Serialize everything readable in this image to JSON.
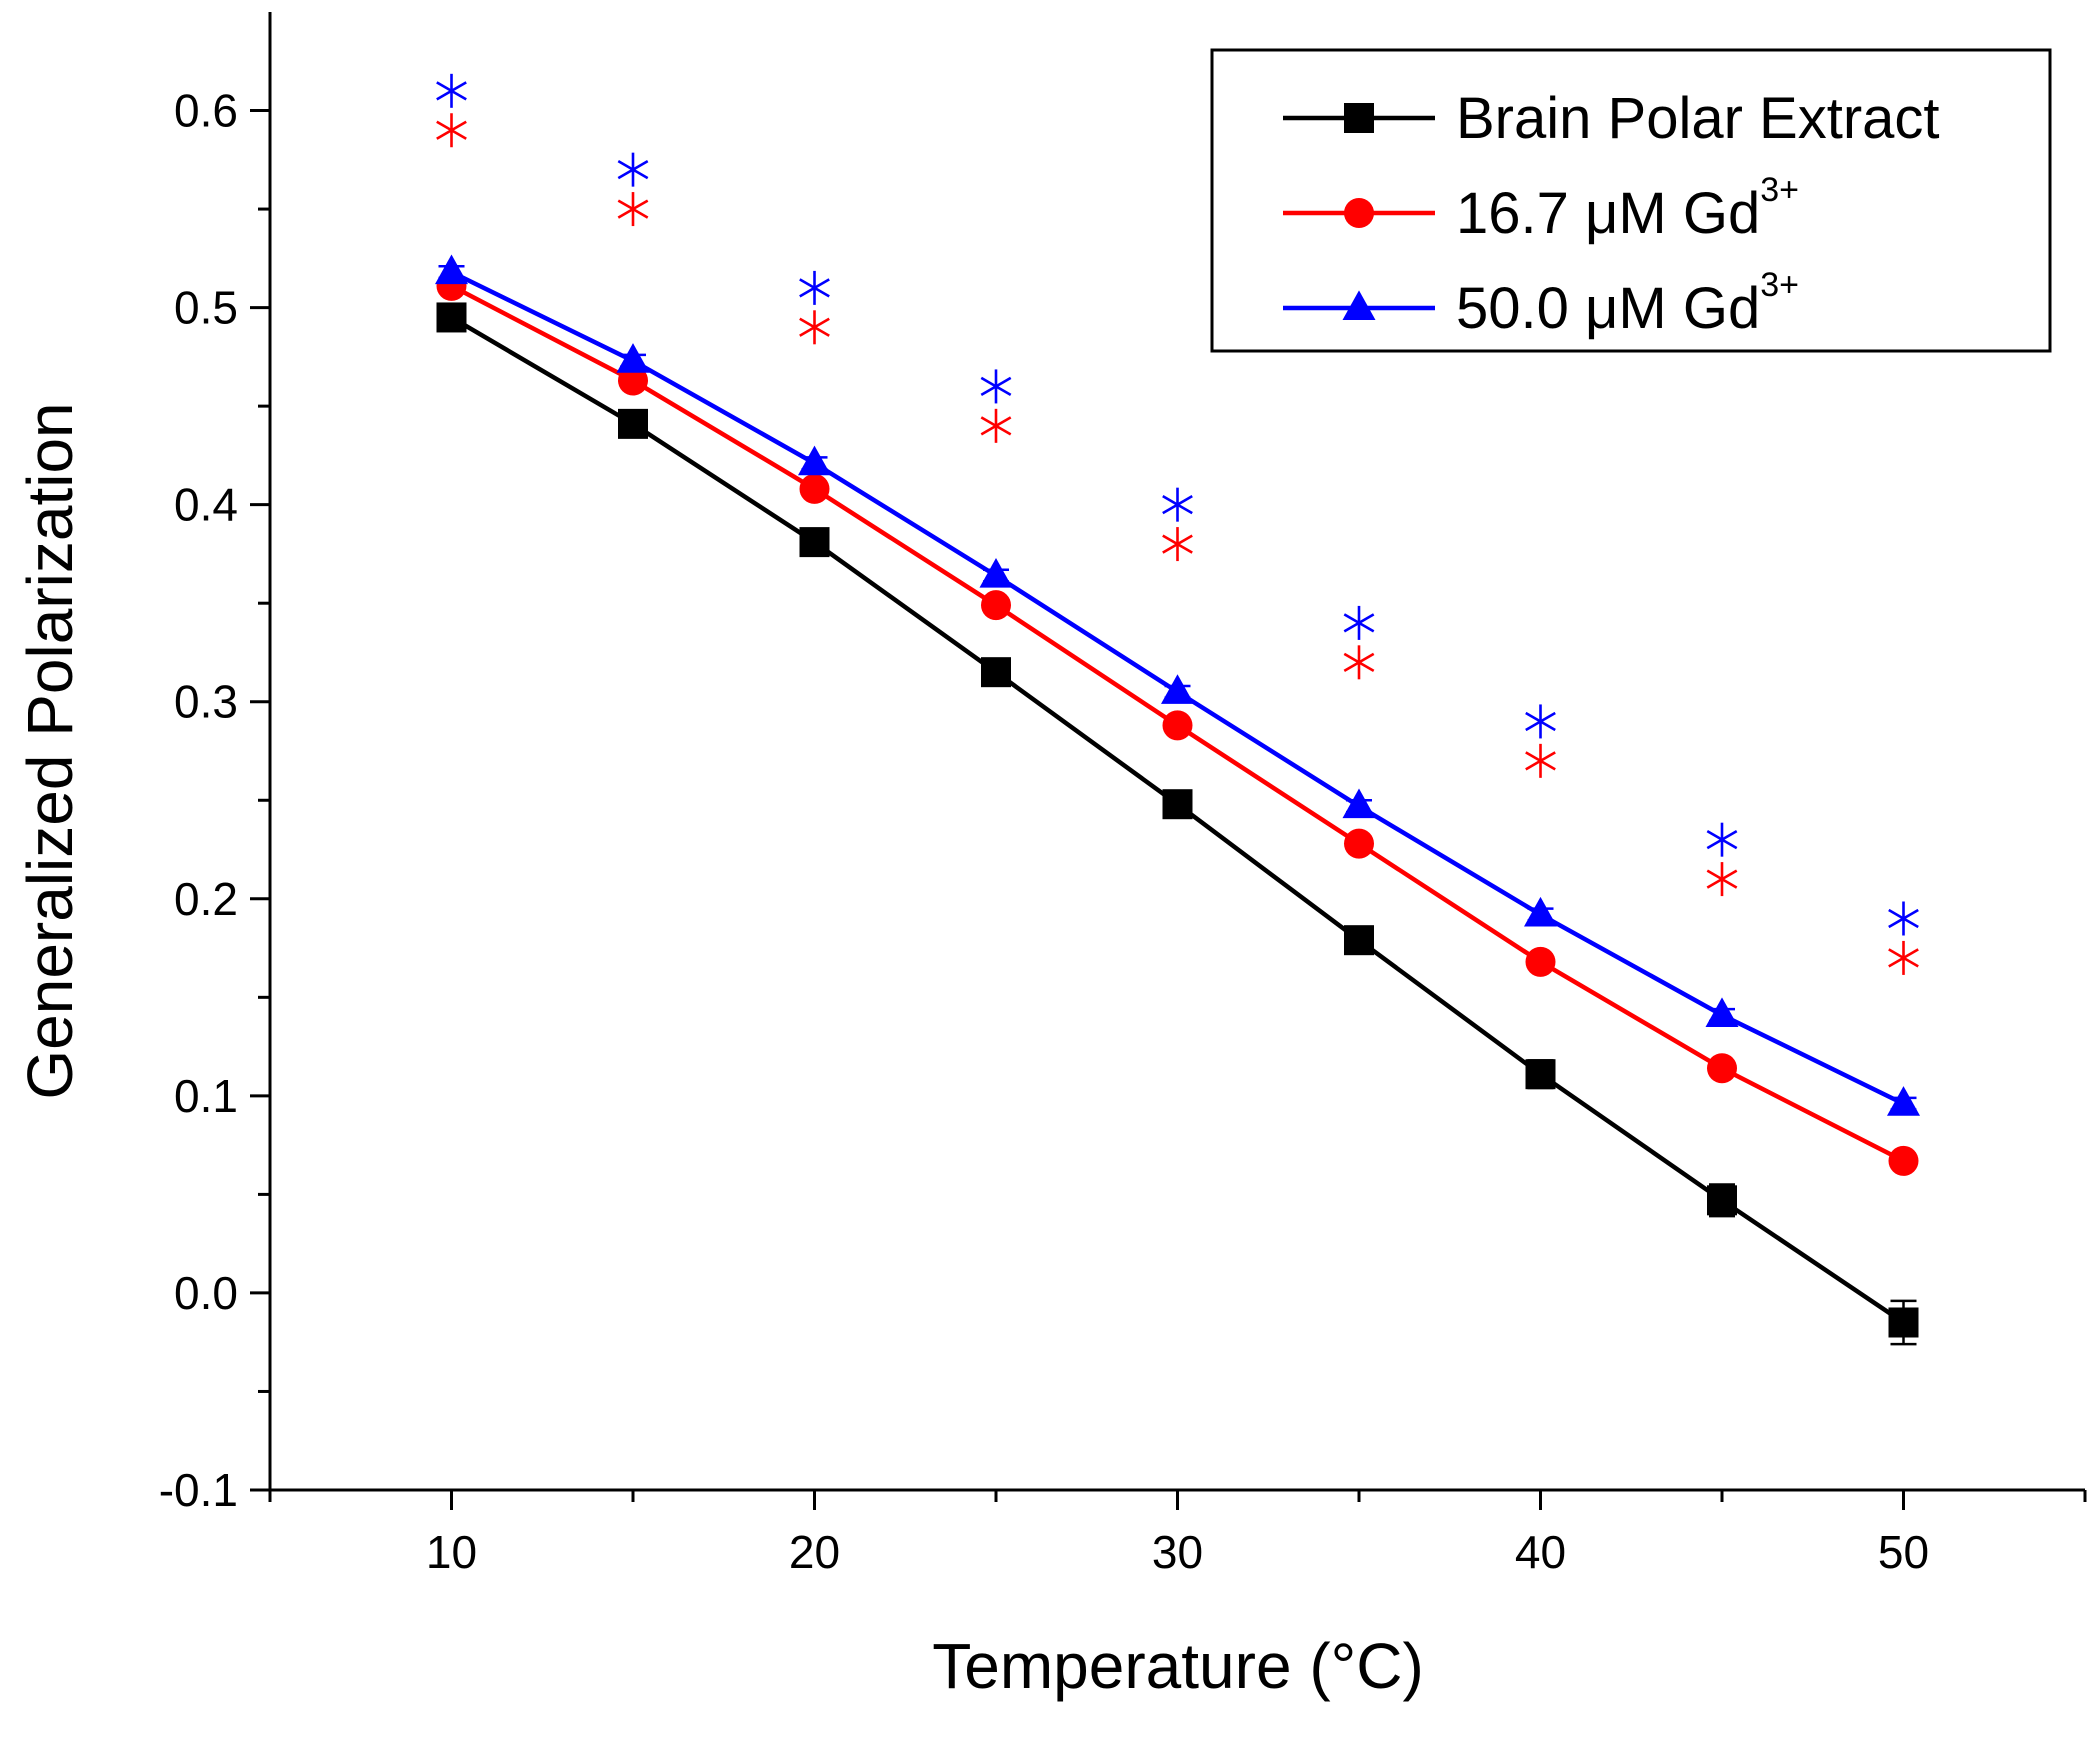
{
  "chart_data": {
    "type": "line",
    "title": "",
    "xlabel": "Temperature (°C)",
    "ylabel": "Generalized Polarization",
    "xlim": [
      5,
      55
    ],
    "ylim": [
      -0.1,
      0.65
    ],
    "x_ticks": [
      10,
      20,
      30,
      40,
      50
    ],
    "x_tick_labels": [
      "10",
      "20",
      "30",
      "40",
      "50"
    ],
    "y_ticks": [
      -0.1,
      0.0,
      0.1,
      0.2,
      0.3,
      0.4,
      0.5,
      0.6
    ],
    "y_tick_labels": [
      "-0.1",
      "0.0",
      "0.1",
      "0.2",
      "0.3",
      "0.4",
      "0.5",
      "0.6"
    ],
    "grid": false,
    "legend_position": "top-right",
    "x": [
      10,
      15,
      20,
      25,
      30,
      35,
      40,
      45,
      50
    ],
    "series": [
      {
        "name": "Brain Polar Extract",
        "legend_main": "Brain Polar Extract",
        "legend_sup": "",
        "color": "#000000",
        "marker": "square",
        "values": [
          0.495,
          0.441,
          0.381,
          0.315,
          0.248,
          0.179,
          0.111,
          0.047,
          -0.015
        ],
        "errors": [
          0.004,
          0.004,
          0.004,
          0.004,
          0.005,
          0.005,
          0.007,
          0.008,
          0.011
        ]
      },
      {
        "name": "16.7 μM Gd3+",
        "legend_main": "16.7 μM Gd",
        "legend_sup": "3+",
        "color": "#ff0000",
        "marker": "circle",
        "values": [
          0.511,
          0.463,
          0.408,
          0.349,
          0.288,
          0.228,
          0.168,
          0.114,
          0.067
        ],
        "errors": [
          0.003,
          0.003,
          0.003,
          0.003,
          0.003,
          0.003,
          0.003,
          0.003,
          0.003
        ]
      },
      {
        "name": "50.0 μM Gd3+",
        "legend_main": "50.0 μM Gd",
        "legend_sup": "3+",
        "color": "#0000ff",
        "marker": "triangle",
        "values": [
          0.518,
          0.473,
          0.421,
          0.364,
          0.305,
          0.247,
          0.192,
          0.141,
          0.096
        ],
        "errors": [
          0.003,
          0.003,
          0.003,
          0.003,
          0.003,
          0.003,
          0.003,
          0.003,
          0.003
        ]
      }
    ],
    "asterisk_series": [
      {
        "color": "#ff0000",
        "values": [
          0.59,
          0.55,
          0.49,
          0.44,
          0.38,
          0.32,
          0.27,
          0.21,
          0.17
        ]
      },
      {
        "color": "#0000ff",
        "values": [
          0.61,
          0.57,
          0.51,
          0.46,
          0.4,
          0.34,
          0.29,
          0.23,
          0.19
        ]
      }
    ]
  }
}
